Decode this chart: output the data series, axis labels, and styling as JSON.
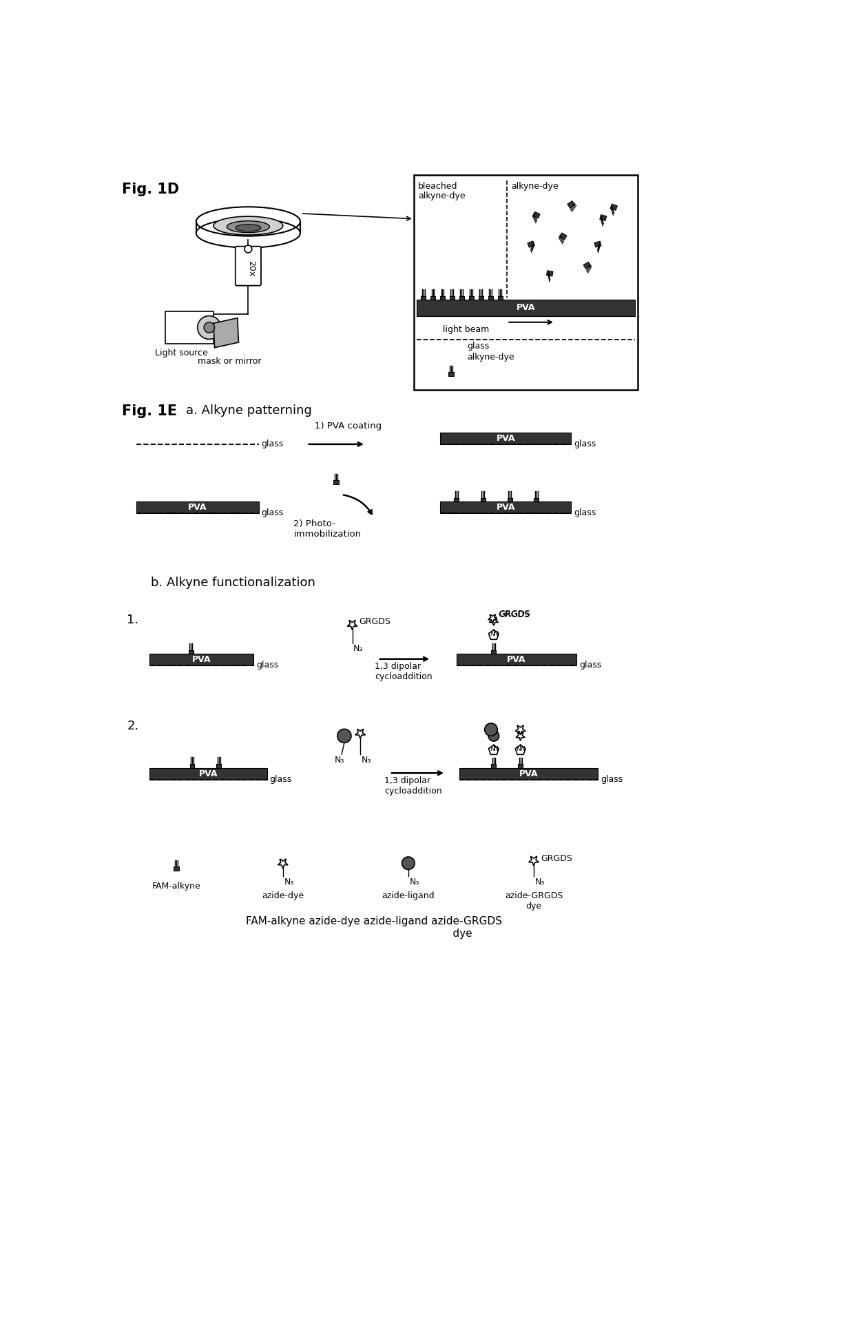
{
  "fig_label_1D": "Fig. 1D",
  "fig_label_1E": "Fig. 1E",
  "section_a": "a. Alkyne patterning",
  "section_b": "b. Alkyne functionalization",
  "step1_label": "1) PVA coating",
  "step2_label": "2) Photo-\nimmobilization",
  "cycloaddition_label": "1,3 dipolar\ncycloaddition",
  "pva_label": "PVA",
  "glass_label": "glass",
  "light_source_label": "Light source",
  "mask_mirror_label": "mask or mirror",
  "objective_label": "20x",
  "bleached_label": "bleached\nalkyne-dye",
  "alkyne_dye_label": "alkyne-dye",
  "light_beam_label": "light beam",
  "glass_box_label": "glass",
  "alkyne_dye_box_label": "alkyne-dye",
  "grgds_label": "GRGDS",
  "n3_label": "N₃",
  "legend_fam": "FAM-alkyne",
  "legend_azide_dye": "azide-dye",
  "legend_azide_ligand": "azide-ligand",
  "legend_azide_grgds": "azide-GRGDS\ndye",
  "pva_color": "#333333",
  "text_color": "#111111"
}
